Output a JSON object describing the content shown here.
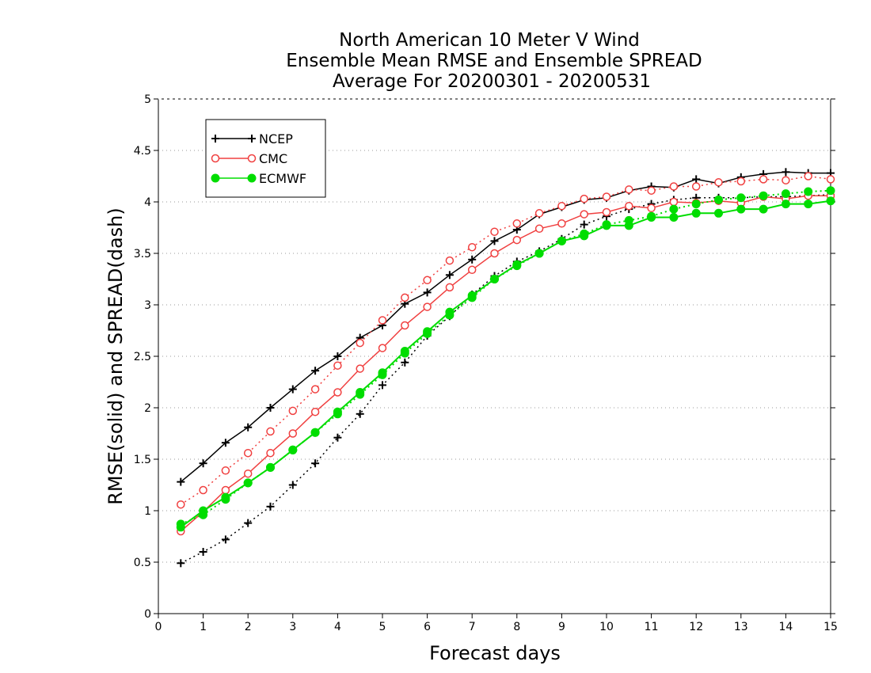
{
  "chart_data": {
    "type": "line",
    "title_lines": [
      "North American 10 Meter V Wind",
      "Ensemble Mean RMSE and Ensemble SPREAD",
      "Average For 20200301 - 20200531"
    ],
    "xlabel": "Forecast days",
    "ylabel": "RMSE(solid) and SPREAD(dash)",
    "xlim": [
      0,
      15
    ],
    "ylim": [
      0,
      5
    ],
    "x_ticks": [
      0,
      1,
      2,
      3,
      4,
      5,
      6,
      7,
      8,
      9,
      10,
      11,
      12,
      13,
      14,
      15
    ],
    "y_ticks": [
      "0",
      "0.5",
      "1",
      "1.5",
      "2",
      "2.5",
      "3",
      "3.5",
      "4",
      "4.5",
      "5"
    ],
    "grid": "horizontal dotted",
    "legend_position": "top-left",
    "x": [
      0.5,
      1,
      1.5,
      2,
      2.5,
      3,
      3.5,
      4,
      4.5,
      5,
      5.5,
      6,
      6.5,
      7,
      7.5,
      8,
      8.5,
      9,
      9.5,
      10,
      10.5,
      11,
      11.5,
      12,
      12.5,
      13,
      13.5,
      14,
      14.5,
      15
    ],
    "series": [
      {
        "name": "NCEP",
        "color": "#000000",
        "marker": "plus",
        "rmse": [
          1.28,
          1.46,
          1.66,
          1.81,
          2.0,
          2.18,
          2.36,
          2.5,
          2.68,
          2.8,
          3.01,
          3.12,
          3.29,
          3.44,
          3.62,
          3.73,
          3.88,
          3.95,
          4.02,
          4.04,
          4.11,
          4.15,
          4.14,
          4.22,
          4.18,
          4.24,
          4.27,
          4.29,
          4.28,
          4.28
        ],
        "spread": [
          0.49,
          0.6,
          0.72,
          0.88,
          1.04,
          1.25,
          1.46,
          1.71,
          1.94,
          2.22,
          2.44,
          2.7,
          2.89,
          3.1,
          3.28,
          3.42,
          3.52,
          3.64,
          3.78,
          3.86,
          3.93,
          3.98,
          4.02,
          4.04,
          4.04,
          4.04,
          4.05,
          4.05,
          4.06,
          4.07
        ]
      },
      {
        "name": "CMC",
        "color": "#f04040",
        "marker": "open-circle",
        "rmse": [
          0.8,
          0.99,
          1.2,
          1.36,
          1.56,
          1.75,
          1.96,
          2.15,
          2.38,
          2.58,
          2.8,
          2.98,
          3.17,
          3.34,
          3.5,
          3.63,
          3.74,
          3.79,
          3.88,
          3.9,
          3.96,
          3.94,
          4.0,
          3.99,
          4.01,
          3.99,
          4.05,
          4.03,
          4.06,
          4.06
        ],
        "spread": [
          1.06,
          1.2,
          1.39,
          1.56,
          1.77,
          1.97,
          2.18,
          2.41,
          2.63,
          2.85,
          3.07,
          3.24,
          3.43,
          3.56,
          3.71,
          3.79,
          3.89,
          3.96,
          4.03,
          4.05,
          4.12,
          4.11,
          4.15,
          4.15,
          4.19,
          4.2,
          4.22,
          4.21,
          4.25,
          4.22
        ]
      },
      {
        "name": "ECMWF",
        "color": "#00dd00",
        "marker": "filled-circle",
        "rmse": [
          0.84,
          1.0,
          1.13,
          1.27,
          1.42,
          1.59,
          1.76,
          1.96,
          2.15,
          2.34,
          2.55,
          2.74,
          2.93,
          3.09,
          3.25,
          3.39,
          3.5,
          3.62,
          3.67,
          3.77,
          3.77,
          3.85,
          3.85,
          3.89,
          3.89,
          3.93,
          3.93,
          3.98,
          3.98,
          4.01
        ],
        "spread": [
          0.87,
          0.96,
          1.11,
          1.27,
          1.42,
          1.59,
          1.76,
          1.94,
          2.13,
          2.32,
          2.53,
          2.72,
          2.9,
          3.07,
          3.25,
          3.38,
          3.5,
          3.62,
          3.69,
          3.78,
          3.82,
          3.86,
          3.93,
          3.98,
          4.02,
          4.04,
          4.06,
          4.08,
          4.1,
          4.11
        ]
      }
    ]
  }
}
